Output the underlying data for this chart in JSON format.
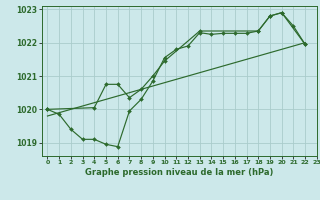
{
  "title": "Graphe pression niveau de la mer (hPa)",
  "background_color": "#cce8ea",
  "grid_color": "#aacccc",
  "line_color": "#2d6a2d",
  "marker_color": "#2d6a2d",
  "xlim": [
    -0.5,
    23
  ],
  "ylim": [
    1018.6,
    1023.1
  ],
  "yticks": [
    1019,
    1020,
    1021,
    1022,
    1023
  ],
  "xtick_labels": [
    "0",
    "1",
    "2",
    "3",
    "4",
    "5",
    "6",
    "7",
    "8",
    "9",
    "10",
    "11",
    "12",
    "13",
    "14",
    "15",
    "16",
    "17",
    "18",
    "19",
    "20",
    "21",
    "22",
    "23"
  ],
  "xtick_pos": [
    0,
    1,
    2,
    3,
    4,
    5,
    6,
    7,
    8,
    9,
    10,
    11,
    12,
    13,
    14,
    15,
    16,
    17,
    18,
    19,
    20,
    21,
    22,
    23
  ],
  "series1": [
    [
      0,
      1020.0
    ],
    [
      1,
      1019.85
    ],
    [
      2,
      1019.4
    ],
    [
      3,
      1019.1
    ],
    [
      4,
      1019.1
    ],
    [
      5,
      1018.95
    ],
    [
      6,
      1018.88
    ],
    [
      7,
      1019.95
    ],
    [
      8,
      1020.3
    ],
    [
      9,
      1020.85
    ],
    [
      10,
      1021.55
    ],
    [
      11,
      1021.8
    ],
    [
      12,
      1021.9
    ],
    [
      13,
      1022.3
    ],
    [
      14,
      1022.25
    ],
    [
      15,
      1022.28
    ],
    [
      16,
      1022.28
    ],
    [
      17,
      1022.28
    ],
    [
      18,
      1022.35
    ],
    [
      19,
      1022.8
    ],
    [
      20,
      1022.9
    ],
    [
      21,
      1022.5
    ],
    [
      22,
      1021.95
    ]
  ],
  "series2": [
    [
      0,
      1020.0
    ],
    [
      4,
      1020.05
    ],
    [
      5,
      1020.75
    ],
    [
      6,
      1020.75
    ],
    [
      7,
      1020.35
    ],
    [
      8,
      1020.6
    ],
    [
      9,
      1021.0
    ],
    [
      10,
      1021.45
    ],
    [
      13,
      1022.35
    ],
    [
      18,
      1022.35
    ],
    [
      19,
      1022.8
    ],
    [
      20,
      1022.9
    ],
    [
      22,
      1021.95
    ]
  ],
  "series3_linear": [
    [
      0,
      1019.8
    ],
    [
      22,
      1022.0
    ]
  ]
}
